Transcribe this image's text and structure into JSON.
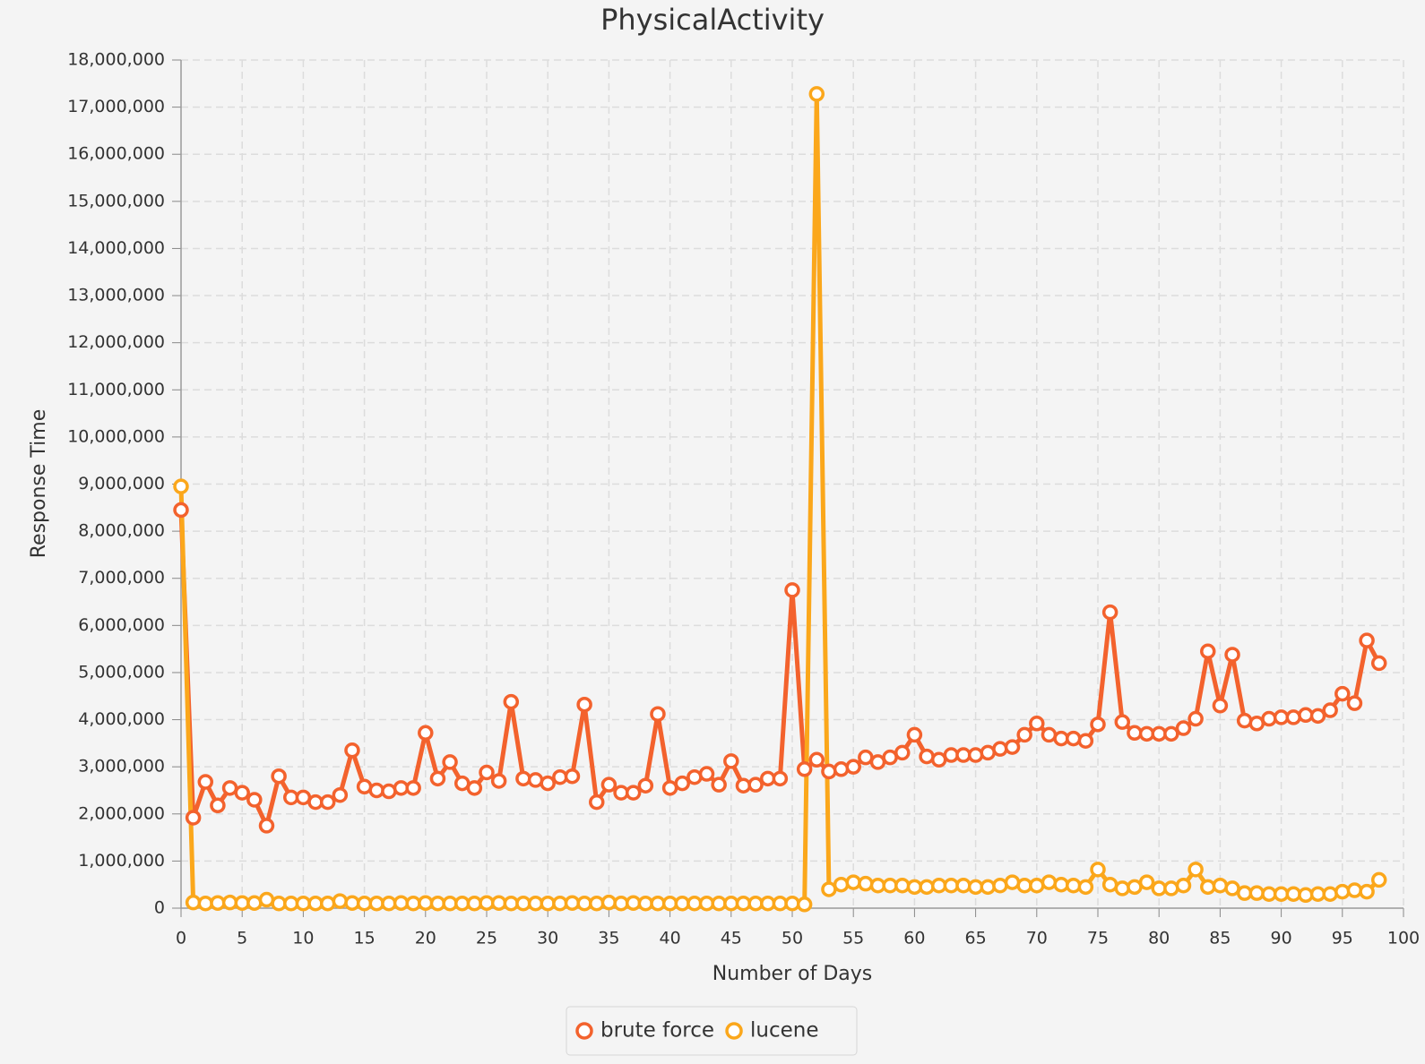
{
  "chart_data": {
    "type": "line",
    "title": "PhysicalActivity",
    "x_label": "Number of Days",
    "y_label": "Response Time",
    "x": [
      0,
      1,
      2,
      3,
      4,
      5,
      6,
      7,
      8,
      9,
      10,
      11,
      12,
      13,
      14,
      15,
      16,
      17,
      18,
      19,
      20,
      21,
      22,
      23,
      24,
      25,
      26,
      27,
      28,
      29,
      30,
      31,
      32,
      33,
      34,
      35,
      36,
      37,
      38,
      39,
      40,
      41,
      42,
      43,
      44,
      45,
      46,
      47,
      48,
      49,
      50,
      51,
      52,
      53,
      54,
      55,
      56,
      57,
      58,
      59,
      60,
      61,
      62,
      63,
      64,
      65,
      66,
      67,
      68,
      69,
      70,
      71,
      72,
      73,
      74,
      75,
      76,
      77,
      78,
      79,
      80,
      81,
      82,
      83,
      84,
      85,
      86,
      87,
      88,
      89,
      90,
      91,
      92,
      93,
      94,
      95,
      96,
      97,
      98
    ],
    "series": [
      {
        "name": "brute force",
        "color": "#f3622d",
        "values": [
          8450000,
          1920000,
          2680000,
          2180000,
          2550000,
          2450000,
          2300000,
          1750000,
          2800000,
          2350000,
          2350000,
          2250000,
          2250000,
          2400000,
          3350000,
          2580000,
          2500000,
          2480000,
          2550000,
          2550000,
          3720000,
          2750000,
          3100000,
          2650000,
          2550000,
          2880000,
          2700000,
          4380000,
          2750000,
          2720000,
          2650000,
          2780000,
          2800000,
          4320000,
          2250000,
          2620000,
          2450000,
          2450000,
          2600000,
          4120000,
          2550000,
          2650000,
          2780000,
          2850000,
          2620000,
          3120000,
          2600000,
          2620000,
          2750000,
          2750000,
          6750000,
          2950000,
          3150000,
          2900000,
          2950000,
          3000000,
          3200000,
          3100000,
          3200000,
          3300000,
          3680000,
          3220000,
          3150000,
          3250000,
          3250000,
          3250000,
          3300000,
          3380000,
          3420000,
          3680000,
          3920000,
          3680000,
          3600000,
          3600000,
          3550000,
          3900000,
          6280000,
          3950000,
          3720000,
          3700000,
          3700000,
          3700000,
          3820000,
          4020000,
          5450000,
          4300000,
          5380000,
          3980000,
          3920000,
          4020000,
          4050000,
          4050000,
          4100000,
          4080000,
          4200000,
          4550000,
          4350000,
          5680000,
          5200000
        ]
      },
      {
        "name": "lucene",
        "color": "#fba71b",
        "values": [
          8950000,
          120000,
          100000,
          110000,
          120000,
          110000,
          110000,
          180000,
          100000,
          100000,
          100000,
          100000,
          100000,
          150000,
          110000,
          100000,
          100000,
          100000,
          110000,
          100000,
          110000,
          100000,
          100000,
          100000,
          100000,
          110000,
          110000,
          100000,
          100000,
          100000,
          100000,
          100000,
          110000,
          100000,
          100000,
          120000,
          100000,
          110000,
          100000,
          100000,
          100000,
          100000,
          100000,
          100000,
          100000,
          100000,
          100000,
          100000,
          100000,
          100000,
          100000,
          80000,
          17280000,
          400000,
          500000,
          550000,
          520000,
          480000,
          480000,
          480000,
          450000,
          450000,
          480000,
          480000,
          480000,
          450000,
          450000,
          480000,
          550000,
          480000,
          480000,
          550000,
          500000,
          480000,
          450000,
          820000,
          500000,
          420000,
          450000,
          550000,
          420000,
          420000,
          480000,
          820000,
          450000,
          480000,
          420000,
          320000,
          320000,
          300000,
          300000,
          300000,
          280000,
          300000,
          300000,
          350000,
          380000,
          350000,
          600000
        ]
      }
    ],
    "xlim": [
      0,
      100
    ],
    "xticks": [
      0,
      5,
      10,
      15,
      20,
      25,
      30,
      35,
      40,
      45,
      50,
      55,
      60,
      65,
      70,
      75,
      80,
      85,
      90,
      95,
      100
    ],
    "ylim": [
      0,
      18000000
    ],
    "yticks": [
      0,
      {
        "value": 1000000,
        "label": "1,000,000"
      },
      {
        "value": 2000000,
        "label": "2,000,000"
      },
      {
        "value": 3000000,
        "label": "3,000,000"
      },
      {
        "value": 4000000,
        "label": "4,000,000"
      },
      {
        "value": 5000000,
        "label": "5,000,000"
      },
      {
        "value": 6000000,
        "label": "6,000,000"
      },
      {
        "value": 7000000,
        "label": "7,000,000"
      },
      {
        "value": 8000000,
        "label": "8,000,000"
      },
      {
        "value": 9000000,
        "label": "9,000,000"
      },
      {
        "value": 10000000,
        "label": "10,000,000"
      },
      {
        "value": 11000000,
        "label": "11,000,000"
      },
      {
        "value": 12000000,
        "label": "12,000,000"
      },
      {
        "value": 13000000,
        "label": "13,000,000"
      },
      {
        "value": 14000000,
        "label": "14,000,000"
      },
      {
        "value": 15000000,
        "label": "15,000,000"
      },
      {
        "value": 16000000,
        "label": "16,000,000"
      },
      {
        "value": 17000000,
        "label": "17,000,000"
      },
      {
        "value": 18000000,
        "label": "18,000,000"
      }
    ],
    "grid": true,
    "legend": "bottom"
  }
}
